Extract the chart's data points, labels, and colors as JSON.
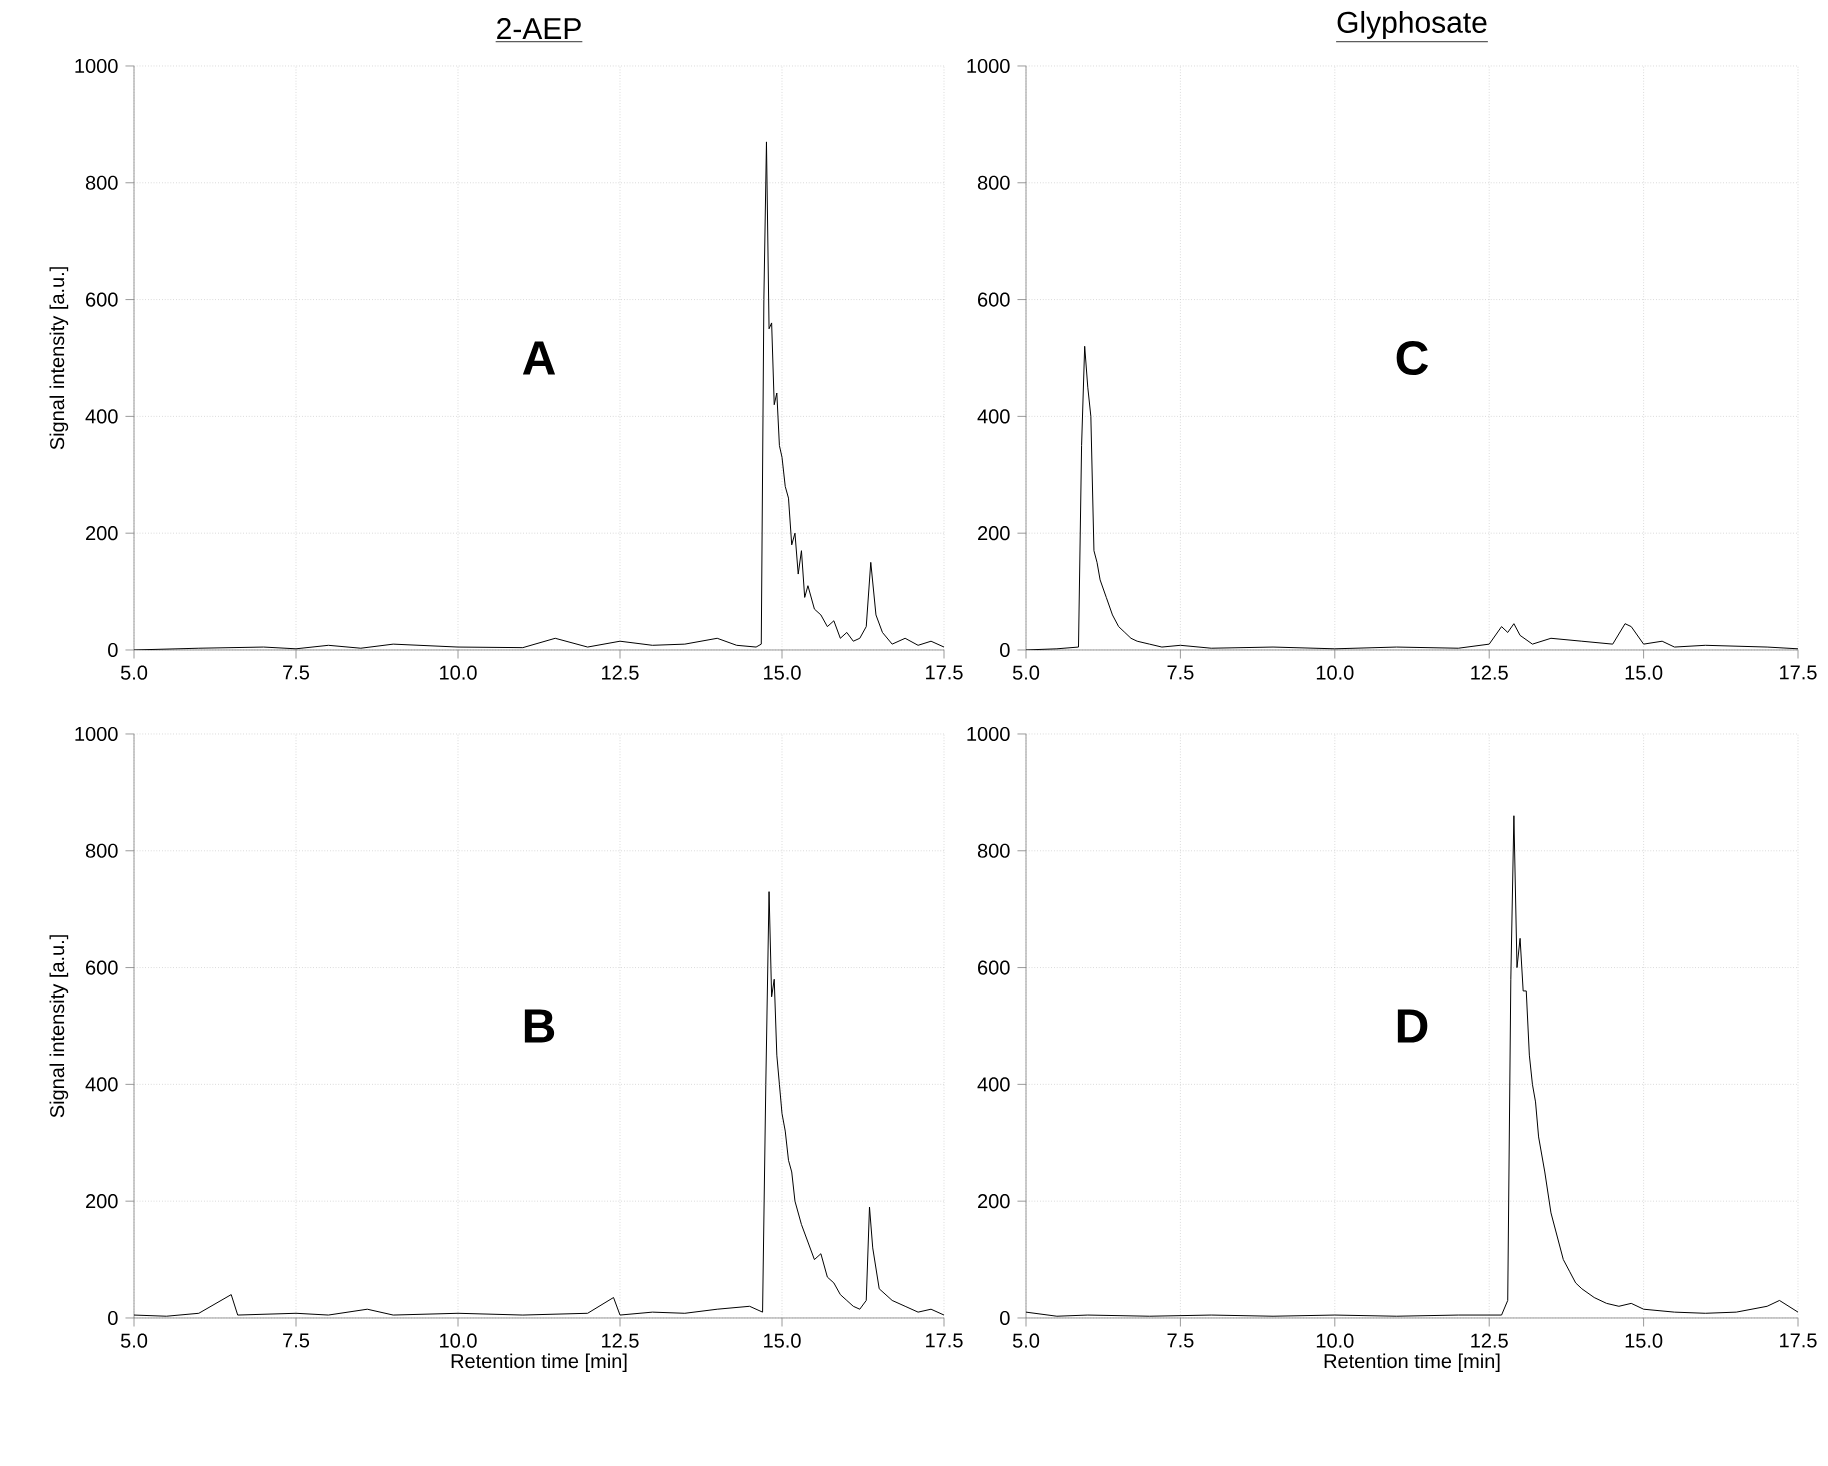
{
  "chart_data": [
    {
      "type": "line",
      "title": "2-AEP",
      "ylabel": "Signal intensity [a.u.]",
      "annotations": [
        "A"
      ],
      "grid": true,
      "xlim": [
        5,
        17.5
      ],
      "xticks": [
        {
          "value": 5,
          "label": "5.0"
        },
        {
          "value": 7.5,
          "label": "7.5"
        },
        {
          "value": 10,
          "label": "10.0"
        },
        {
          "value": 12.5,
          "label": "12.5"
        },
        {
          "value": 15,
          "label": "15.0"
        },
        {
          "value": 17.5,
          "label": "17.5"
        }
      ],
      "ylim": [
        0,
        1000
      ],
      "yticks": [
        0,
        200,
        400,
        600,
        800,
        1000
      ],
      "series": [
        {
          "color": "#000000",
          "x": [
            5.0,
            6.0,
            7.0,
            7.5,
            8.0,
            8.5,
            9.0,
            10.0,
            11.0,
            11.5,
            12.0,
            12.5,
            13.0,
            13.5,
            14.0,
            14.3,
            14.6,
            14.68,
            14.72,
            14.76,
            14.8,
            14.84,
            14.88,
            14.92,
            14.96,
            15.0,
            15.05,
            15.1,
            15.15,
            15.2,
            15.25,
            15.3,
            15.35,
            15.4,
            15.5,
            15.6,
            15.7,
            15.8,
            15.9,
            16.0,
            16.1,
            16.2,
            16.3,
            16.37,
            16.45,
            16.55,
            16.7,
            16.9,
            17.1,
            17.3,
            17.5
          ],
          "values": [
            0,
            3,
            5,
            2,
            8,
            3,
            10,
            5,
            4,
            20,
            5,
            15,
            8,
            10,
            20,
            8,
            5,
            10,
            600,
            870,
            550,
            560,
            420,
            440,
            350,
            330,
            280,
            260,
            180,
            200,
            130,
            170,
            90,
            110,
            70,
            60,
            40,
            50,
            20,
            30,
            15,
            20,
            40,
            150,
            60,
            30,
            10,
            20,
            8,
            15,
            5
          ]
        }
      ]
    },
    {
      "type": "line",
      "title": "Glyphosate",
      "annotations": [
        "C"
      ],
      "grid": true,
      "xlim": [
        5,
        17.5
      ],
      "xticks": [
        {
          "value": 5,
          "label": "5.0"
        },
        {
          "value": 7.5,
          "label": "7.5"
        },
        {
          "value": 10,
          "label": "10.0"
        },
        {
          "value": 12.5,
          "label": "12.5"
        },
        {
          "value": 15,
          "label": "15.0"
        },
        {
          "value": 17.5,
          "label": "17.5"
        }
      ],
      "ylim": [
        0,
        1000
      ],
      "yticks": [
        0,
        200,
        400,
        600,
        800,
        1000
      ],
      "series": [
        {
          "color": "#000000",
          "x": [
            5.0,
            5.5,
            5.85,
            5.9,
            5.95,
            6.0,
            6.05,
            6.1,
            6.15,
            6.2,
            6.3,
            6.4,
            6.5,
            6.6,
            6.7,
            6.8,
            7.0,
            7.2,
            7.5,
            8.0,
            9.0,
            10.0,
            11.0,
            12.0,
            12.5,
            12.7,
            12.8,
            12.9,
            13.0,
            13.2,
            13.5,
            14.0,
            14.5,
            14.7,
            14.8,
            15.0,
            15.3,
            15.5,
            16.0,
            17.0,
            17.5
          ],
          "values": [
            0,
            2,
            5,
            350,
            520,
            450,
            400,
            170,
            150,
            120,
            90,
            60,
            40,
            30,
            20,
            15,
            10,
            5,
            8,
            3,
            5,
            2,
            5,
            3,
            10,
            40,
            30,
            45,
            25,
            10,
            20,
            15,
            10,
            45,
            40,
            10,
            15,
            5,
            8,
            5,
            2
          ]
        }
      ]
    },
    {
      "type": "line",
      "xlabel": "Retention time [min]",
      "ylabel": "Signal intensity [a.u.]",
      "annotations": [
        "B"
      ],
      "grid": true,
      "xlim": [
        5,
        17.5
      ],
      "xticks": [
        {
          "value": 5,
          "label": "5.0"
        },
        {
          "value": 7.5,
          "label": "7.5"
        },
        {
          "value": 10,
          "label": "10.0"
        },
        {
          "value": 12.5,
          "label": "12.5"
        },
        {
          "value": 15,
          "label": "15.0"
        },
        {
          "value": 17.5,
          "label": "17.5"
        }
      ],
      "ylim": [
        0,
        1000
      ],
      "yticks": [
        0,
        200,
        400,
        600,
        800,
        1000
      ],
      "series": [
        {
          "color": "#000000",
          "x": [
            5.0,
            5.5,
            6.0,
            6.5,
            6.6,
            7.5,
            8.0,
            8.6,
            9.0,
            10.0,
            11.0,
            12.0,
            12.4,
            12.5,
            13.0,
            13.5,
            14.0,
            14.5,
            14.7,
            14.75,
            14.8,
            14.84,
            14.88,
            14.92,
            14.96,
            15.0,
            15.05,
            15.1,
            15.15,
            15.2,
            15.3,
            15.4,
            15.5,
            15.6,
            15.7,
            15.8,
            15.9,
            16.0,
            16.1,
            16.2,
            16.3,
            16.35,
            16.4,
            16.5,
            16.7,
            16.9,
            17.1,
            17.3,
            17.5
          ],
          "values": [
            5,
            3,
            8,
            40,
            5,
            8,
            5,
            15,
            5,
            8,
            5,
            8,
            35,
            5,
            10,
            8,
            15,
            20,
            10,
            400,
            730,
            550,
            580,
            450,
            400,
            350,
            320,
            270,
            250,
            200,
            160,
            130,
            100,
            110,
            70,
            60,
            40,
            30,
            20,
            15,
            30,
            190,
            120,
            50,
            30,
            20,
            10,
            15,
            5
          ]
        }
      ]
    },
    {
      "type": "line",
      "xlabel": "Retention time [min]",
      "annotations": [
        "D"
      ],
      "grid": true,
      "xlim": [
        5,
        17.5
      ],
      "xticks": [
        {
          "value": 5,
          "label": "5.0"
        },
        {
          "value": 7.5,
          "label": "7.5"
        },
        {
          "value": 10,
          "label": "10.0"
        },
        {
          "value": 12.5,
          "label": "12.5"
        },
        {
          "value": 15,
          "label": "15.0"
        },
        {
          "value": 17.5,
          "label": "17.5"
        }
      ],
      "ylim": [
        0,
        1000
      ],
      "yticks": [
        0,
        200,
        400,
        600,
        800,
        1000
      ],
      "series": [
        {
          "color": "#000000",
          "x": [
            5.0,
            5.5,
            6.0,
            7.0,
            8.0,
            9.0,
            10.0,
            11.0,
            12.0,
            12.7,
            12.8,
            12.85,
            12.9,
            12.95,
            13.0,
            13.05,
            13.1,
            13.15,
            13.2,
            13.25,
            13.3,
            13.4,
            13.5,
            13.6,
            13.7,
            13.8,
            13.9,
            14.0,
            14.2,
            14.4,
            14.6,
            14.8,
            15.0,
            15.5,
            16.0,
            16.5,
            17.0,
            17.2,
            17.5
          ],
          "values": [
            10,
            3,
            5,
            3,
            5,
            3,
            5,
            3,
            5,
            5,
            30,
            580,
            860,
            600,
            650,
            560,
            560,
            450,
            400,
            370,
            310,
            250,
            180,
            140,
            100,
            80,
            60,
            50,
            35,
            25,
            20,
            25,
            15,
            10,
            8,
            10,
            20,
            30,
            10
          ]
        }
      ]
    }
  ]
}
